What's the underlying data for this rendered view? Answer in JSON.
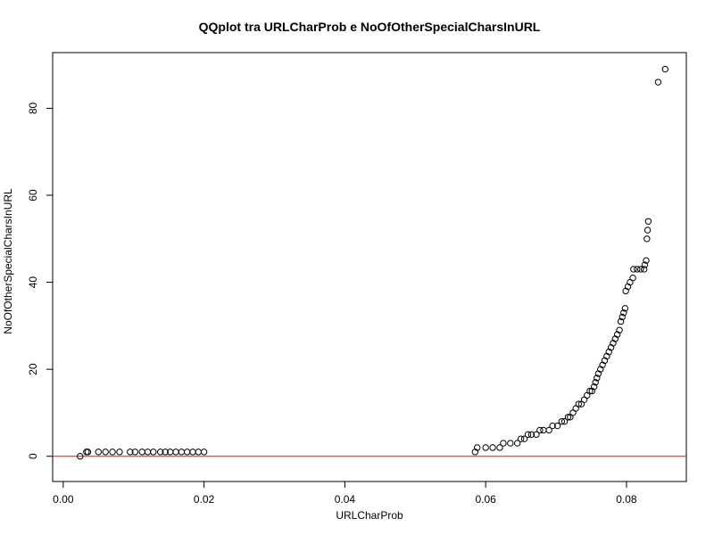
{
  "chart_data": {
    "type": "scatter",
    "title": "QQplot tra URLCharProb e NoOfOtherSpecialCharsInURL",
    "xlabel": "URLCharProb",
    "ylabel": "NoOfOtherSpecialCharsInURL",
    "xlim": [
      -0.0015,
      0.0885
    ],
    "ylim": [
      -5.8,
      92.8
    ],
    "xticks": [
      0.0,
      0.02,
      0.04,
      0.06,
      0.08
    ],
    "xtick_labels": [
      "0.00",
      "0.02",
      "0.04",
      "0.06",
      "0.08"
    ],
    "yticks": [
      0,
      20,
      40,
      60,
      80
    ],
    "ytick_labels": [
      "0",
      "20",
      "40",
      "60",
      "80"
    ],
    "grid": false,
    "legend": "none",
    "point_color": "#000000",
    "reference_line": {
      "y": 0,
      "color": "#ff0000"
    },
    "points": [
      [
        0.0024,
        0
      ],
      [
        0.0033,
        1
      ],
      [
        0.0035,
        1
      ],
      [
        0.005,
        1
      ],
      [
        0.006,
        1
      ],
      [
        0.007,
        1
      ],
      [
        0.008,
        1
      ],
      [
        0.0095,
        1
      ],
      [
        0.0102,
        1
      ],
      [
        0.0112,
        1
      ],
      [
        0.012,
        1
      ],
      [
        0.0128,
        1
      ],
      [
        0.0138,
        1
      ],
      [
        0.0145,
        1
      ],
      [
        0.0152,
        1
      ],
      [
        0.016,
        1
      ],
      [
        0.0168,
        1
      ],
      [
        0.0176,
        1
      ],
      [
        0.0184,
        1
      ],
      [
        0.0192,
        1
      ],
      [
        0.02,
        1
      ],
      [
        0.0585,
        1
      ],
      [
        0.0588,
        2
      ],
      [
        0.06,
        2
      ],
      [
        0.061,
        2
      ],
      [
        0.062,
        2
      ],
      [
        0.0625,
        3
      ],
      [
        0.0635,
        3
      ],
      [
        0.0645,
        3
      ],
      [
        0.065,
        4
      ],
      [
        0.0655,
        4
      ],
      [
        0.066,
        5
      ],
      [
        0.0665,
        5
      ],
      [
        0.0672,
        5
      ],
      [
        0.0677,
        6
      ],
      [
        0.0682,
        6
      ],
      [
        0.069,
        6
      ],
      [
        0.0695,
        7
      ],
      [
        0.0702,
        7
      ],
      [
        0.0708,
        8
      ],
      [
        0.0712,
        8
      ],
      [
        0.0717,
        9
      ],
      [
        0.072,
        9
      ],
      [
        0.0724,
        10
      ],
      [
        0.0728,
        11
      ],
      [
        0.0732,
        12
      ],
      [
        0.0736,
        12
      ],
      [
        0.074,
        13
      ],
      [
        0.0744,
        14
      ],
      [
        0.0748,
        15
      ],
      [
        0.0751,
        15
      ],
      [
        0.0754,
        16
      ],
      [
        0.0756,
        17
      ],
      [
        0.0758,
        18
      ],
      [
        0.076,
        19
      ],
      [
        0.0763,
        20
      ],
      [
        0.0766,
        21
      ],
      [
        0.0769,
        22
      ],
      [
        0.0772,
        23
      ],
      [
        0.0775,
        24
      ],
      [
        0.0778,
        25
      ],
      [
        0.0781,
        26
      ],
      [
        0.0784,
        27
      ],
      [
        0.0787,
        28
      ],
      [
        0.079,
        29
      ],
      [
        0.0792,
        31
      ],
      [
        0.0794,
        32
      ],
      [
        0.0796,
        33
      ],
      [
        0.0798,
        34
      ],
      [
        0.0799,
        38
      ],
      [
        0.0802,
        39
      ],
      [
        0.0805,
        40
      ],
      [
        0.0809,
        41
      ],
      [
        0.081,
        43
      ],
      [
        0.0815,
        43
      ],
      [
        0.082,
        43
      ],
      [
        0.0825,
        43
      ],
      [
        0.0826,
        44
      ],
      [
        0.0828,
        45
      ],
      [
        0.0829,
        50
      ],
      [
        0.083,
        52
      ],
      [
        0.0831,
        54
      ],
      [
        0.0845,
        86
      ],
      [
        0.0855,
        89
      ]
    ]
  }
}
